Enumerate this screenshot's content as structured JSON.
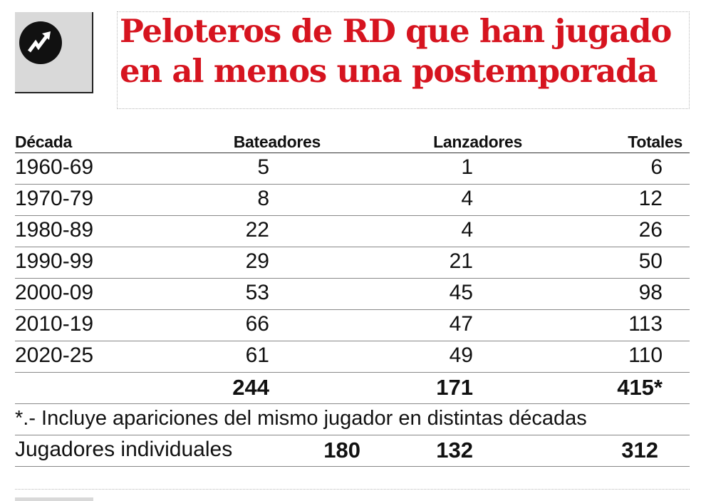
{
  "title": "Peloteros de RD que han jugado en al menos una postemporada",
  "logo_icon": "trend-arrow-icon",
  "table": {
    "headers": {
      "decada": "Década",
      "bateadores": "Bateadores",
      "lanzadores": "Lanzadores",
      "totales": "Totales"
    },
    "rows": [
      {
        "decada": "1960-69",
        "bateadores": "5",
        "lanzadores": "1",
        "totales": "6"
      },
      {
        "decada": "1970-79",
        "bateadores": "8",
        "lanzadores": "4",
        "totales": "12"
      },
      {
        "decada": "1980-89",
        "bateadores": "22",
        "lanzadores": "4",
        "totales": "26"
      },
      {
        "decada": "1990-99",
        "bateadores": "29",
        "lanzadores": "21",
        "totales": "50"
      },
      {
        "decada": "2000-09",
        "bateadores": "53",
        "lanzadores": "45",
        "totales": "98"
      },
      {
        "decada": "2010-19",
        "bateadores": "66",
        "lanzadores": "47",
        "totales": "113"
      },
      {
        "decada": "2020-25",
        "bateadores": "61",
        "lanzadores": "49",
        "totales": "110"
      }
    ],
    "totals": {
      "bateadores": "244",
      "lanzadores": "171",
      "totales": "415*"
    },
    "note": "*.- Incluye apariciones del mismo jugador en distintas décadas",
    "individuales": {
      "label": "Jugadores individuales",
      "bateadores": "180",
      "lanzadores": "132",
      "totales": "312"
    }
  }
}
